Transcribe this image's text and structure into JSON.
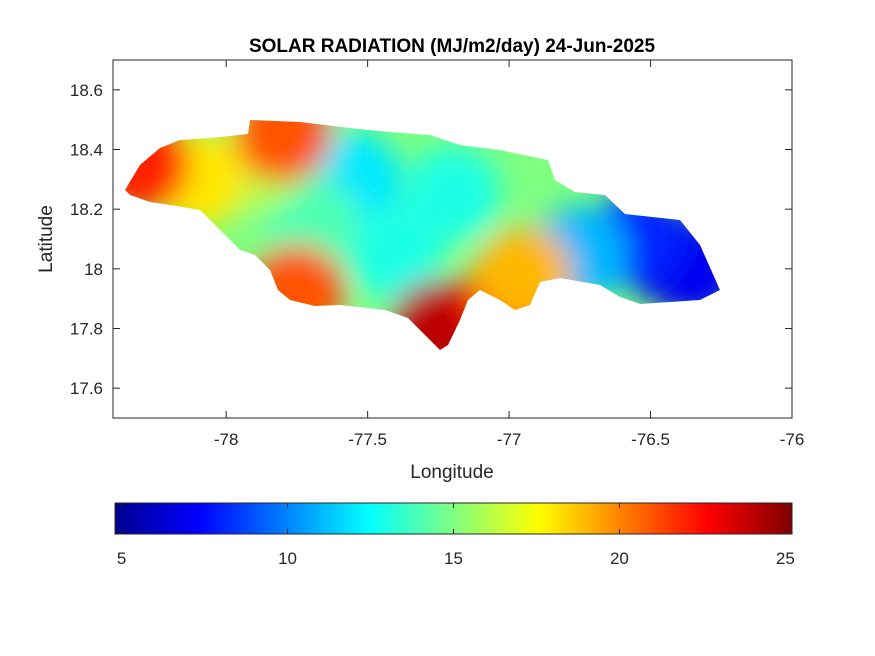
{
  "chart_data": {
    "type": "heatmap",
    "title": "SOLAR RADIATION (MJ/m2/day) 24-Jun-2025",
    "xlabel": "Longitude",
    "ylabel": "Latitude",
    "xlim": [
      -78.4,
      -76
    ],
    "ylim": [
      17.5,
      18.7
    ],
    "x_ticks": [
      -78,
      -77.5,
      -77,
      -76.5,
      -76
    ],
    "x_tick_labels": [
      "-78",
      "-77.5",
      "-77",
      "-76.5",
      "-76"
    ],
    "y_ticks": [
      17.6,
      17.8,
      18,
      18.2,
      18.4,
      18.6
    ],
    "y_tick_labels": [
      "17.6",
      "17.8",
      "18",
      "18.2",
      "18.4",
      "18.6"
    ],
    "grid": false,
    "colormap": "jet",
    "colorbar": {
      "placement": "bottom",
      "range": [
        4.8,
        25.2
      ],
      "ticks": [
        5,
        10,
        15,
        20,
        25
      ],
      "tick_labels": [
        "5",
        "10",
        "15",
        "20",
        "25"
      ]
    },
    "regions": [
      {
        "lon": -76.45,
        "lat": 18.05,
        "value": 6
      },
      {
        "lon": -76.35,
        "lat": 18.0,
        "value": 7
      },
      {
        "lon": -76.55,
        "lat": 18.1,
        "value": 8
      },
      {
        "lon": -76.75,
        "lat": 18.05,
        "value": 11
      },
      {
        "lon": -77.55,
        "lat": 18.3,
        "value": 12
      },
      {
        "lon": -77.2,
        "lat": 18.25,
        "value": 13
      },
      {
        "lon": -77.4,
        "lat": 18.05,
        "value": 13
      },
      {
        "lon": -77.7,
        "lat": 18.15,
        "value": 14
      },
      {
        "lon": -77.9,
        "lat": 18.35,
        "value": 16
      },
      {
        "lon": -78.1,
        "lat": 18.3,
        "value": 18
      },
      {
        "lon": -78.3,
        "lat": 18.35,
        "value": 22
      },
      {
        "lon": -77.8,
        "lat": 18.45,
        "value": 21
      },
      {
        "lon": -77.75,
        "lat": 17.92,
        "value": 21
      },
      {
        "lon": -77.25,
        "lat": 17.8,
        "value": 24
      },
      {
        "lon": -77.0,
        "lat": 17.9,
        "value": 22
      },
      {
        "lon": -76.95,
        "lat": 17.98,
        "value": 19
      }
    ]
  }
}
